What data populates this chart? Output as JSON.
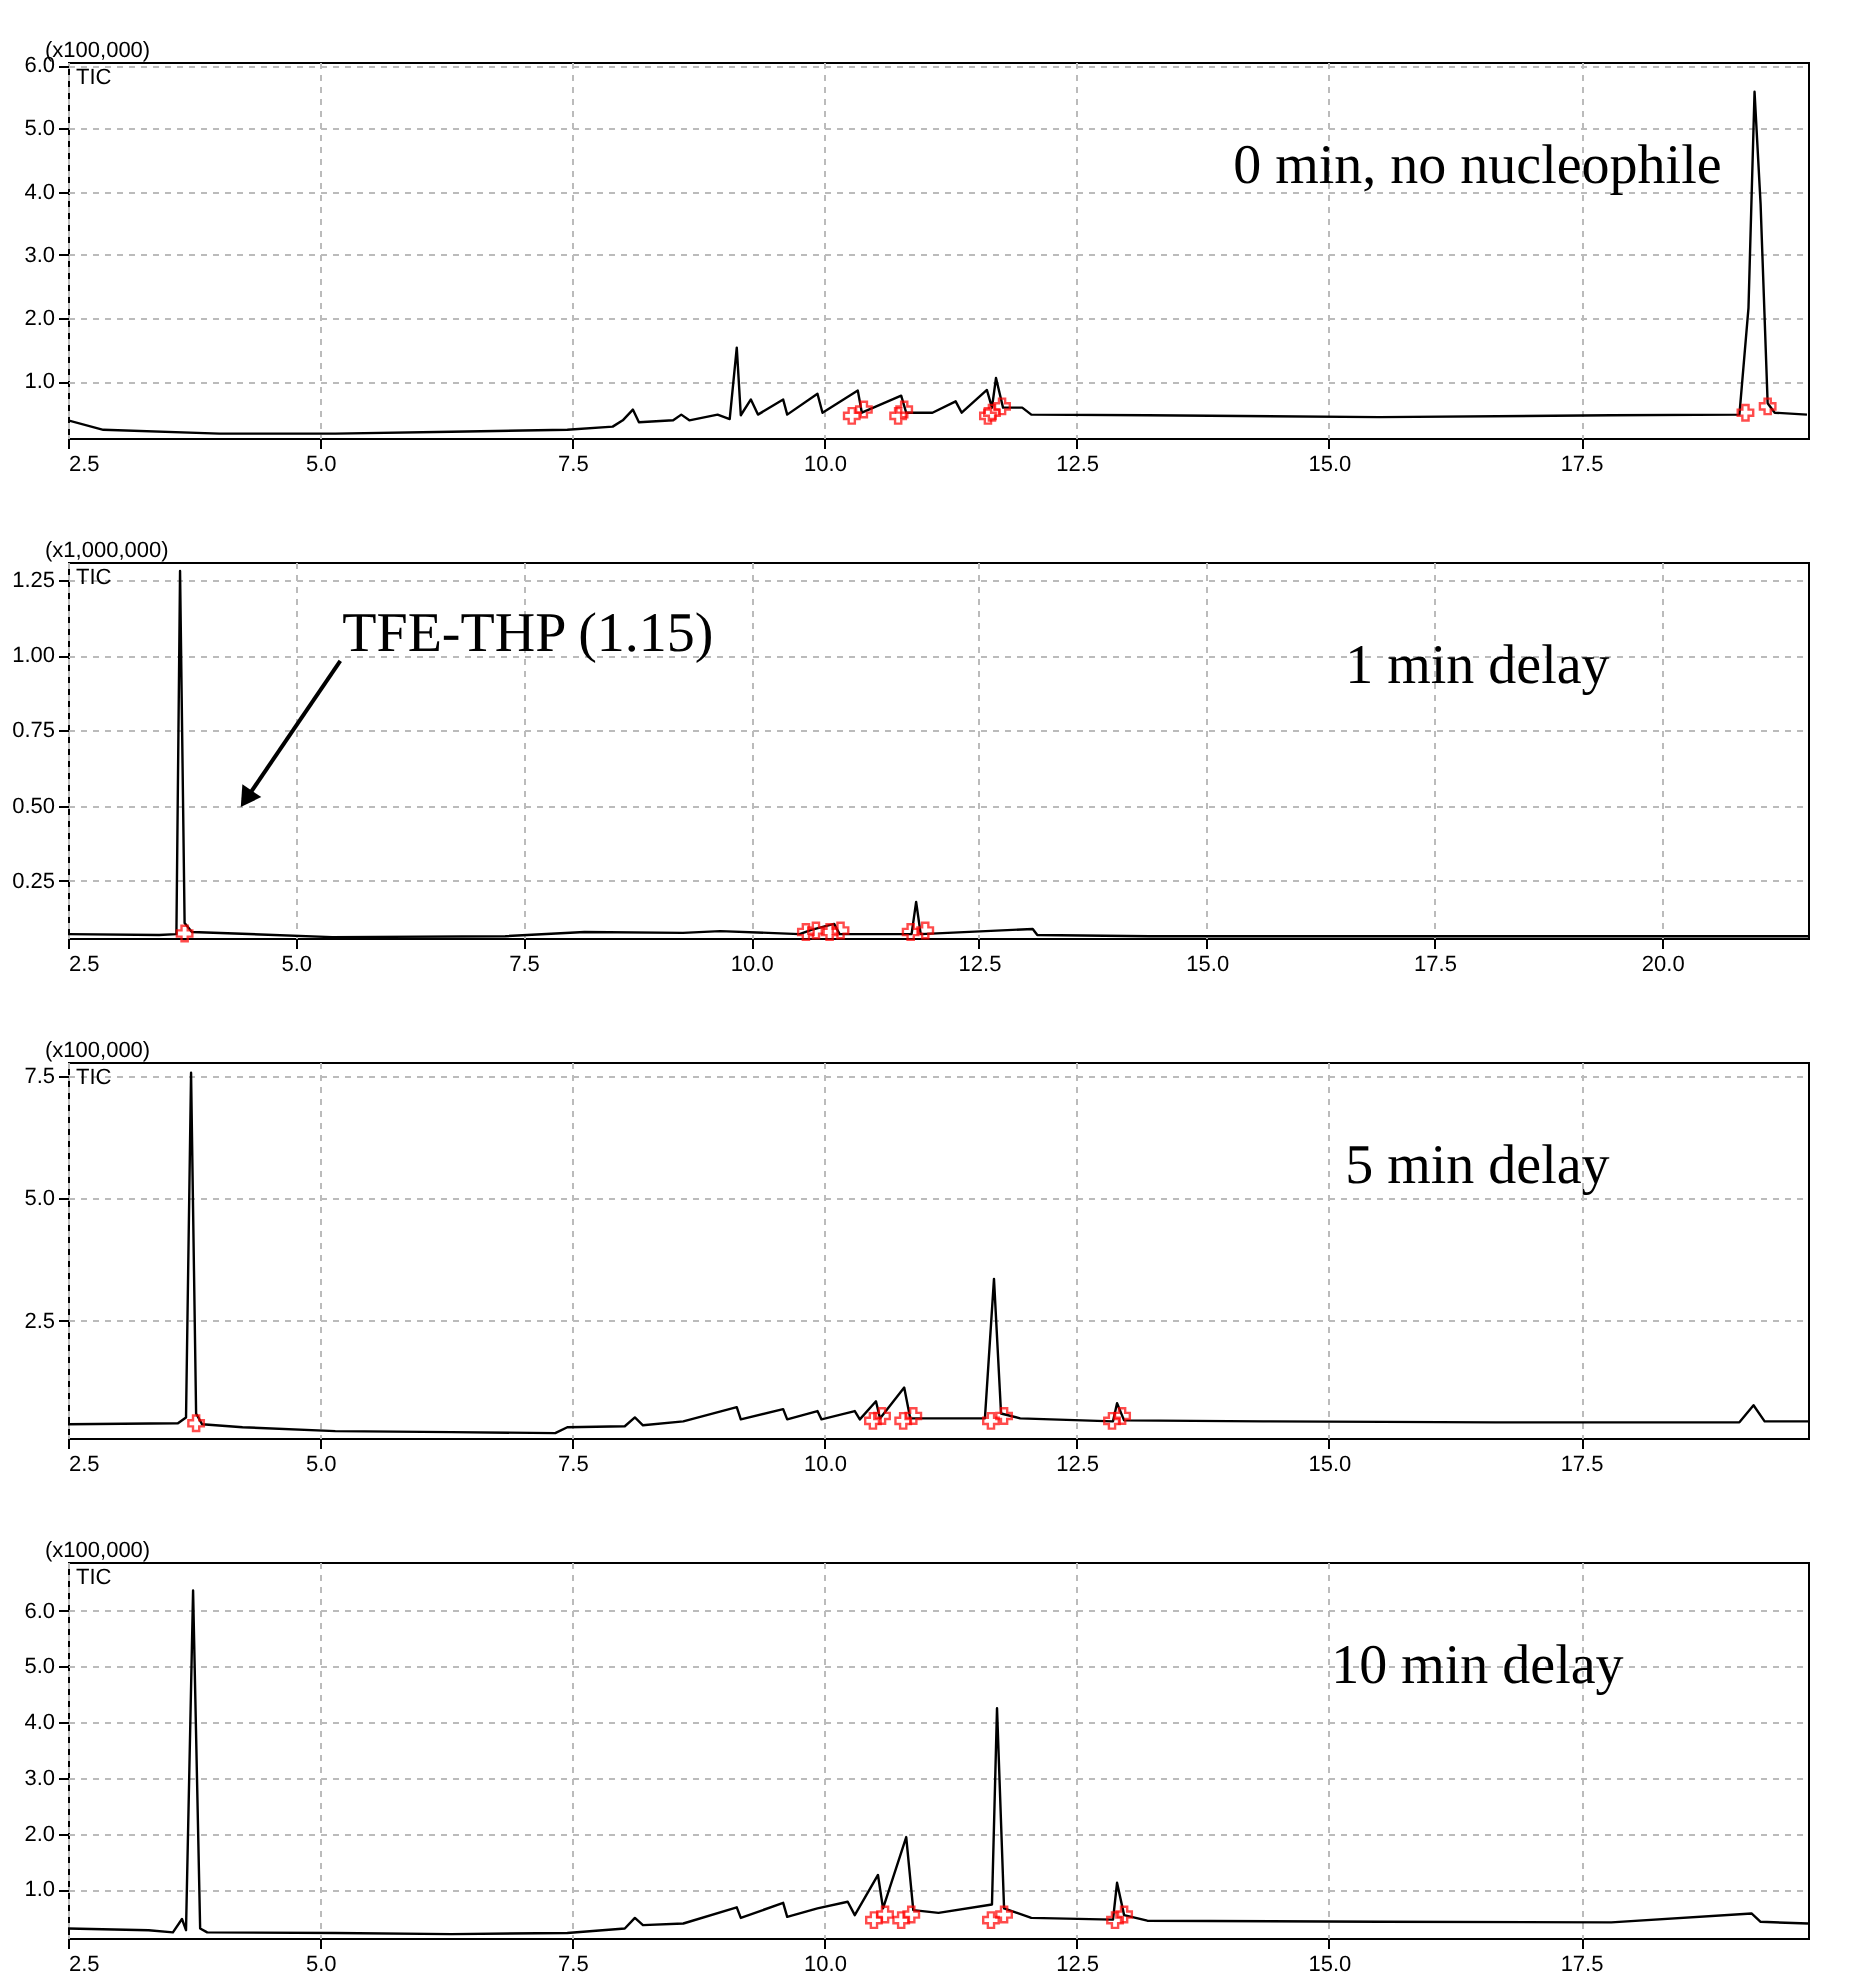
{
  "chart_data": [
    {
      "type": "line",
      "ylabel": "(x100,000)",
      "annotations": [
        "TIC",
        "0 min, no nucleophile"
      ],
      "grid": true,
      "xlim": [
        2.5,
        19.75
      ],
      "ylim": [
        0.1,
        6.05
      ],
      "xticks": [
        {
          "value": 2.5,
          "label": "2.5"
        },
        {
          "value": 5,
          "label": "5.0"
        },
        {
          "value": 7.5,
          "label": "7.5"
        },
        {
          "value": 10,
          "label": "10.0"
        },
        {
          "value": 12.5,
          "label": "12.5"
        },
        {
          "value": 15,
          "label": "15.0"
        },
        {
          "value": 17.5,
          "label": "17.5"
        }
      ],
      "yticks": [
        {
          "value": 1,
          "label": "1.0"
        },
        {
          "value": 2,
          "label": "2.0"
        },
        {
          "value": 3,
          "label": "3.0"
        },
        {
          "value": 4,
          "label": "4.0"
        },
        {
          "value": 5,
          "label": "5.0"
        },
        {
          "value": 6,
          "label": "6.0"
        }
      ],
      "series": [
        {
          "color": "#000000",
          "x": [
            2.5,
            2.85,
            4.0,
            5.15,
            6.3,
            7.45,
            7.9,
            8.0,
            8.1,
            8.16,
            8.5,
            8.58,
            8.66,
            8.94,
            9.06,
            9.13,
            9.17,
            9.27,
            9.34,
            9.59,
            9.63,
            9.93,
            9.98,
            10.33,
            10.37,
            10.76,
            10.81,
            11.07,
            11.3,
            11.36,
            11.61,
            11.66,
            11.7,
            11.77,
            11.96,
            12.05,
            13.2,
            15.5,
            17.8,
            19.07,
            19.16,
            19.22,
            19.28,
            19.35,
            19.42,
            19.74
          ],
          "values": [
            0.38,
            0.23,
            0.17,
            0.17,
            0.2,
            0.23,
            0.28,
            0.38,
            0.55,
            0.35,
            0.38,
            0.47,
            0.38,
            0.47,
            0.4,
            1.53,
            0.46,
            0.71,
            0.47,
            0.71,
            0.47,
            0.8,
            0.5,
            0.85,
            0.5,
            0.77,
            0.5,
            0.5,
            0.68,
            0.5,
            0.86,
            0.58,
            1.05,
            0.58,
            0.58,
            0.47,
            0.46,
            0.43,
            0.46,
            0.47,
            2.16,
            5.58,
            3.8,
            0.65,
            0.5,
            0.47
          ]
        },
        {
          "type": "scatter",
          "color": "#ff0000",
          "marker": "cross",
          "x": [
            10.27,
            10.39,
            10.73,
            10.79,
            11.62,
            11.66,
            11.76,
            19.13,
            19.35
          ],
          "values": [
            0.45,
            0.55,
            0.45,
            0.55,
            0.45,
            0.5,
            0.6,
            0.5,
            0.6
          ]
        }
      ]
    },
    {
      "type": "line",
      "ylabel": "(x1,000,000)",
      "annotations": [
        "TIC",
        "1 min delay",
        "TFE-THP (1.15)"
      ],
      "grid": true,
      "xlim": [
        2.5,
        21.6
      ],
      "ylim": [
        0.06,
        1.31
      ],
      "xticks": [
        {
          "value": 2.5,
          "label": "2.5"
        },
        {
          "value": 5,
          "label": "5.0"
        },
        {
          "value": 7.5,
          "label": "7.5"
        },
        {
          "value": 10,
          "label": "10.0"
        },
        {
          "value": 12.5,
          "label": "12.5"
        },
        {
          "value": 15,
          "label": "15.0"
        },
        {
          "value": 17.5,
          "label": "17.5"
        },
        {
          "value": 20,
          "label": "20.0"
        }
      ],
      "yticks": [
        0.25,
        {
          "value": 0.5,
          "label": "0.50"
        },
        {
          "value": 0.75,
          "label": "0.75"
        },
        {
          "value": 1,
          "label": "1.00"
        },
        1.25
      ],
      "series": [
        {
          "color": "#000000",
          "x": [
            2.5,
            3.5,
            3.69,
            3.73,
            3.78,
            3.86,
            5.4,
            7.3,
            8.17,
            9.25,
            9.66,
            10.53,
            10.66,
            10.91,
            10.97,
            11.76,
            11.81,
            11.86,
            13.09,
            13.14,
            14.37,
            21.6
          ],
          "values": [
            0.073,
            0.07,
            0.073,
            1.28,
            0.11,
            0.08,
            0.063,
            0.066,
            0.08,
            0.077,
            0.083,
            0.073,
            0.087,
            0.107,
            0.073,
            0.073,
            0.18,
            0.073,
            0.09,
            0.07,
            0.066,
            0.066
          ]
        },
        {
          "type": "scatter",
          "color": "#ff0000",
          "marker": "cross",
          "x": [
            3.78,
            10.6,
            10.71,
            10.86,
            10.98,
            11.75,
            11.91
          ],
          "values": [
            0.075,
            0.08,
            0.085,
            0.08,
            0.085,
            0.08,
            0.085
          ]
        }
      ]
    },
    {
      "type": "line",
      "ylabel": "(x100,000)",
      "annotations": [
        "TIC",
        "5 min delay"
      ],
      "grid": true,
      "xlim": [
        2.5,
        19.75
      ],
      "ylim": [
        0.1,
        7.78
      ],
      "xticks": [
        {
          "value": 2.5,
          "label": "2.5"
        },
        {
          "value": 5,
          "label": "5.0"
        },
        {
          "value": 7.5,
          "label": "7.5"
        },
        {
          "value": 10,
          "label": "10.0"
        },
        {
          "value": 12.5,
          "label": "12.5"
        },
        {
          "value": 15,
          "label": "15.0"
        },
        {
          "value": 17.5,
          "label": "17.5"
        }
      ],
      "yticks": [
        2.5,
        {
          "value": 5,
          "label": "5.0"
        },
        7.5
      ],
      "series": [
        {
          "color": "#000000",
          "x": [
            2.5,
            3.59,
            3.67,
            3.72,
            3.77,
            3.83,
            4.23,
            5.15,
            6.3,
            7.33,
            7.45,
            8.02,
            8.12,
            8.2,
            8.6,
            9.13,
            9.17,
            9.59,
            9.63,
            9.93,
            9.97,
            10.3,
            10.35,
            10.51,
            10.55,
            10.79,
            10.85,
            11.59,
            11.68,
            11.75,
            11.94,
            12.86,
            12.9,
            12.97,
            14.35,
            16.65,
            19.07,
            19.21,
            19.32,
            19.75
          ],
          "values": [
            0.38,
            0.4,
            0.52,
            7.56,
            0.6,
            0.38,
            0.32,
            0.24,
            0.22,
            0.2,
            0.32,
            0.34,
            0.52,
            0.36,
            0.44,
            0.73,
            0.48,
            0.69,
            0.48,
            0.65,
            0.48,
            0.65,
            0.48,
            0.85,
            0.5,
            1.13,
            0.5,
            0.5,
            3.35,
            0.6,
            0.5,
            0.44,
            0.81,
            0.46,
            0.44,
            0.42,
            0.42,
            0.77,
            0.44,
            0.44
          ]
        },
        {
          "type": "scatter",
          "color": "#ff0000",
          "marker": "cross",
          "x": [
            3.77,
            10.48,
            10.57,
            10.78,
            10.88,
            11.65,
            11.78,
            12.85,
            12.95
          ],
          "values": [
            0.4,
            0.45,
            0.55,
            0.45,
            0.55,
            0.45,
            0.55,
            0.45,
            0.55
          ]
        }
      ]
    },
    {
      "type": "line",
      "ylabel": "(x100,000)",
      "annotations": [
        "TIC",
        "10 min delay"
      ],
      "grid": true,
      "xlim": [
        2.5,
        19.75
      ],
      "ylim": [
        0.13,
        6.87
      ],
      "xticks": [
        {
          "value": 2.5,
          "label": "2.5"
        },
        {
          "value": 5,
          "label": "5.0"
        },
        {
          "value": 7.5,
          "label": "7.5"
        },
        {
          "value": 10,
          "label": "10.0"
        },
        {
          "value": 12.5,
          "label": "12.5"
        },
        {
          "value": 15,
          "label": "15.0"
        },
        {
          "value": 17.5,
          "label": "17.5"
        }
      ],
      "yticks": [
        {
          "value": 1,
          "label": "1.0"
        },
        {
          "value": 2,
          "label": "2.0"
        },
        {
          "value": 3,
          "label": "3.0"
        },
        {
          "value": 4,
          "label": "4.0"
        },
        {
          "value": 5,
          "label": "5.0"
        },
        {
          "value": 6,
          "label": "6.0"
        }
      ],
      "series": [
        {
          "color": "#000000",
          "x": [
            2.5,
            3.3,
            3.54,
            3.63,
            3.67,
            3.74,
            3.81,
            3.88,
            5.15,
            6.3,
            7.45,
            8.02,
            8.12,
            8.2,
            8.6,
            9.13,
            9.17,
            9.59,
            9.63,
            9.93,
            10.23,
            10.3,
            10.53,
            10.58,
            10.81,
            10.88,
            11.13,
            11.66,
            11.71,
            11.78,
            12.05,
            12.86,
            12.9,
            12.97,
            13.2,
            15.5,
            17.8,
            19.19,
            19.28,
            19.75
          ],
          "values": [
            0.3,
            0.27,
            0.23,
            0.47,
            0.27,
            6.36,
            0.3,
            0.23,
            0.22,
            0.2,
            0.22,
            0.3,
            0.49,
            0.36,
            0.39,
            0.68,
            0.49,
            0.76,
            0.51,
            0.66,
            0.78,
            0.54,
            1.26,
            0.66,
            1.94,
            0.63,
            0.58,
            0.73,
            4.25,
            0.66,
            0.49,
            0.46,
            1.12,
            0.54,
            0.44,
            0.42,
            0.41,
            0.57,
            0.42,
            0.39
          ]
        },
        {
          "type": "scatter",
          "color": "#ff0000",
          "marker": "cross",
          "x": [
            10.49,
            10.6,
            10.76,
            10.86,
            11.65,
            11.78,
            12.88,
            12.97
          ],
          "values": [
            0.45,
            0.55,
            0.45,
            0.55,
            0.45,
            0.55,
            0.45,
            0.55
          ]
        }
      ]
    }
  ]
}
